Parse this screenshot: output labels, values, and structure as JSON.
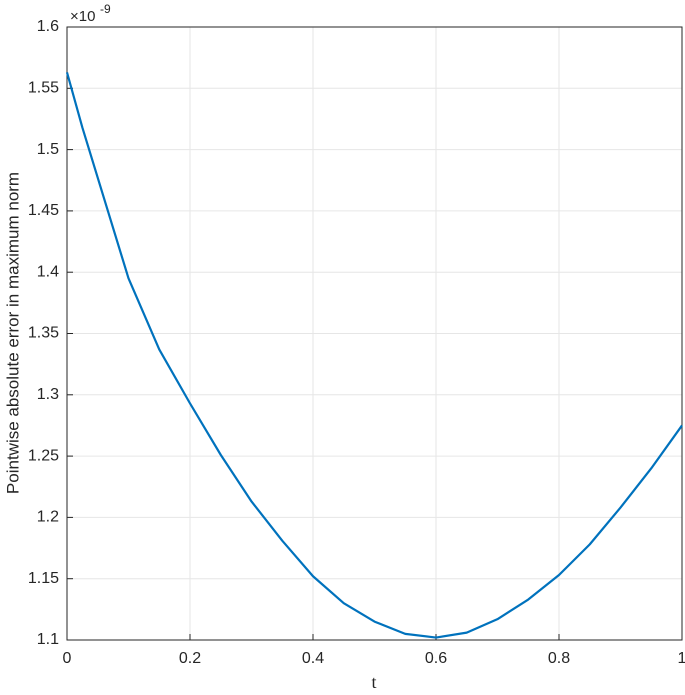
{
  "chart_data": {
    "type": "line",
    "x_label": "t",
    "y_label": "Pointwise absolute error in maximum norm",
    "y_exponent_base": "×10",
    "y_exponent": "-9",
    "x": [
      0,
      0.025,
      0.05,
      0.1,
      0.15,
      0.2,
      0.25,
      0.3,
      0.35,
      0.4,
      0.45,
      0.5,
      0.55,
      0.6,
      0.65,
      0.7,
      0.75,
      0.8,
      0.85,
      0.9,
      0.95,
      1.0
    ],
    "series": [
      {
        "color": "#0072bd",
        "values": [
          1.563,
          1.518,
          1.477,
          1.395,
          1.337,
          1.293,
          1.251,
          1.213,
          1.181,
          1.152,
          1.13,
          1.115,
          1.105,
          1.102,
          1.106,
          1.117,
          1.133,
          1.153,
          1.178,
          1.208,
          1.24,
          1.275
        ]
      }
    ],
    "xlim": [
      0,
      1
    ],
    "xticks": [
      0,
      0.2,
      0.4,
      0.6,
      0.8,
      1
    ],
    "ylim": [
      1.1,
      1.6
    ],
    "yticks": [
      1.1,
      1.15,
      1.2,
      1.25,
      1.3,
      1.35,
      1.4,
      1.45,
      1.5,
      1.55,
      1.6
    ],
    "grid": true
  }
}
